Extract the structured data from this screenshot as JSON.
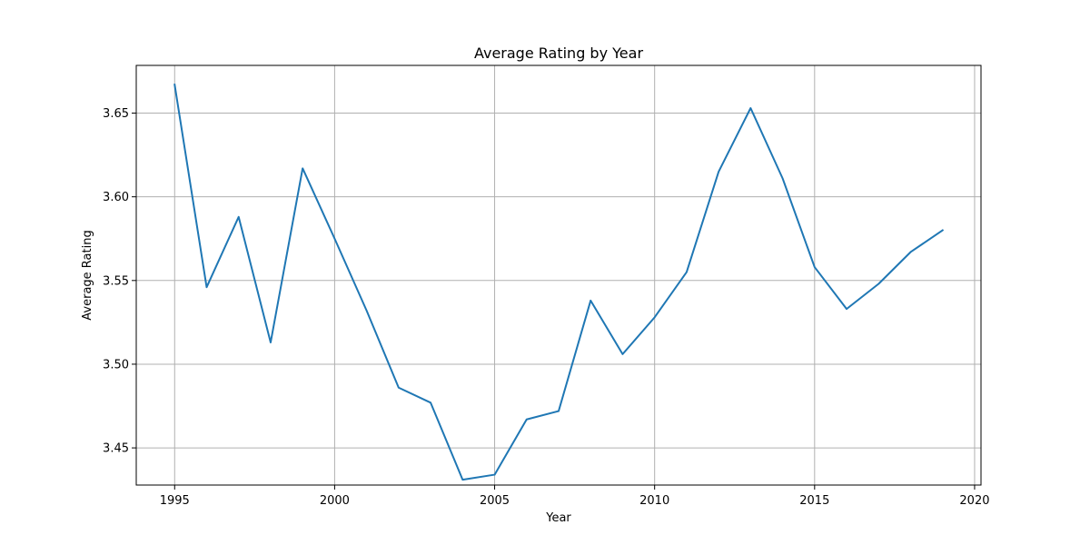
{
  "chart_data": {
    "type": "line",
    "title": "Average Rating by Year",
    "xlabel": "Year",
    "ylabel": "Average Rating",
    "xlim": [
      1993.8,
      2020.2
    ],
    "ylim": [
      3.4278,
      3.6785
    ],
    "xticks": [
      1995,
      2000,
      2005,
      2010,
      2015,
      2020
    ],
    "yticks": [
      3.45,
      3.5,
      3.55,
      3.6,
      3.65
    ],
    "ytick_labels": [
      "3.45",
      "3.50",
      "3.55",
      "3.60",
      "3.65"
    ],
    "grid": true,
    "series": [
      {
        "color": "#1f77b4",
        "x": [
          1995,
          1996,
          1997,
          1998,
          1999,
          2000,
          2001,
          2002,
          2003,
          2004,
          2005,
          2006,
          2007,
          2008,
          2009,
          2010,
          2011,
          2012,
          2013,
          2014,
          2015,
          2016,
          2017,
          2018,
          2019
        ],
        "values": [
          3.667,
          3.546,
          3.588,
          3.513,
          3.617,
          3.575,
          3.532,
          3.486,
          3.477,
          3.431,
          3.434,
          3.467,
          3.472,
          3.538,
          3.506,
          3.528,
          3.555,
          3.615,
          3.653,
          3.611,
          3.558,
          3.533,
          3.548,
          3.567,
          3.58
        ]
      }
    ]
  }
}
